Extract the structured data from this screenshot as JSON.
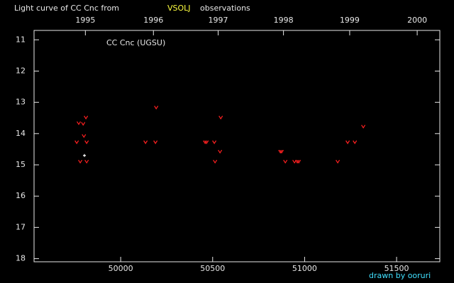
{
  "chart_data": {
    "type": "scatter",
    "title": "Light curve of CC Cnc from",
    "title_source": "VSOLJ",
    "title_suffix": "observations",
    "annotation": "CC Cnc (UGSU)",
    "credit": "drawn by ooruri",
    "xlim": [
      49529,
      51735
    ],
    "xticks": [
      50000,
      50500,
      51000,
      51500
    ],
    "x2ticks": [
      {
        "value": 49808,
        "label": "1995"
      },
      {
        "value": 50178,
        "label": "1996"
      },
      {
        "value": 50530,
        "label": "1997"
      },
      {
        "value": 50885,
        "label": "1998"
      },
      {
        "value": 51245,
        "label": "1999"
      },
      {
        "value": 51612,
        "label": "2000"
      }
    ],
    "ylim": [
      10.7,
      18.1
    ],
    "y_inverted": true,
    "yticks": [
      11,
      12,
      13,
      14,
      15,
      16,
      17,
      18
    ],
    "series": [
      {
        "color": "#ff2020",
        "x": [
          49761,
          49772,
          49780,
          49796,
          49800,
          49811,
          49815,
          49815,
          50135,
          50193,
          50189,
          50459,
          50467,
          50509,
          50513,
          50540,
          50544,
          50868,
          50875,
          50895,
          50945,
          50960,
          50968,
          51180,
          51234,
          51273,
          51319
        ],
        "values": [
          14.27,
          13.66,
          14.89,
          13.68,
          14.07,
          13.48,
          14.27,
          14.89,
          14.27,
          13.16,
          14.27,
          14.27,
          14.27,
          14.27,
          14.89,
          14.57,
          13.48,
          14.57,
          14.57,
          14.89,
          14.89,
          14.89,
          14.89,
          14.89,
          14.27,
          14.27,
          13.77
        ]
      },
      {
        "color": "#ffffff",
        "x": [
          49803
        ],
        "values": [
          14.7
        ]
      }
    ]
  }
}
